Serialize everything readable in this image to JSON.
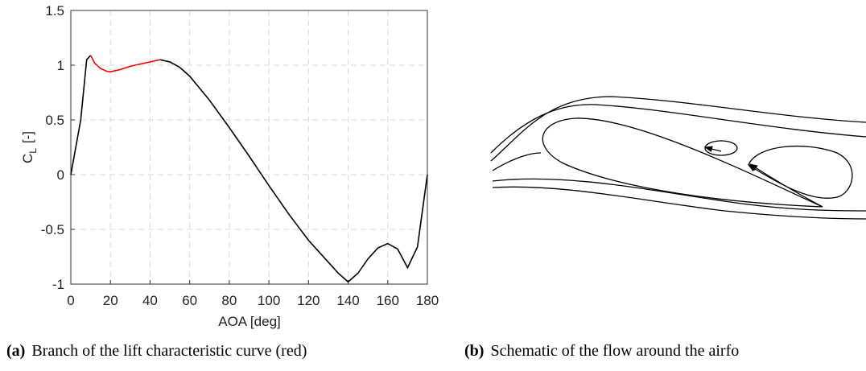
{
  "chart_data": {
    "type": "line",
    "xlabel": "AOA [deg]",
    "ylabel_main": "C",
    "ylabel_sub": "L",
    "ylabel_unit": "[-]",
    "xlim": [
      0,
      180
    ],
    "xticks": [
      0,
      20,
      40,
      60,
      80,
      100,
      120,
      140,
      160,
      180
    ],
    "ylim": [
      -1,
      1.5
    ],
    "yticks": [
      -1,
      -0.5,
      0,
      0.5,
      1,
      1.5
    ],
    "grid": true,
    "series": [
      {
        "color": "#000000",
        "x": [
          0,
          5,
          8,
          10
        ],
        "values": [
          0,
          0.5,
          1.05,
          1.09
        ]
      },
      {
        "color": "#ff0000",
        "x": [
          10,
          12,
          15,
          18,
          20,
          25,
          30,
          35,
          40,
          45
        ],
        "values": [
          1.09,
          1.02,
          0.97,
          0.945,
          0.94,
          0.96,
          0.99,
          1.01,
          1.03,
          1.05
        ]
      },
      {
        "color": "#000000",
        "x": [
          45,
          50,
          55,
          60,
          70,
          80,
          90,
          100,
          110,
          120,
          125,
          130,
          135,
          140,
          145,
          150,
          155,
          160,
          165,
          170,
          175,
          180
        ],
        "values": [
          1.05,
          1.03,
          0.98,
          0.9,
          0.68,
          0.43,
          0.17,
          -0.1,
          -0.36,
          -0.6,
          -0.7,
          -0.8,
          -0.9,
          -0.98,
          -0.9,
          -0.77,
          -0.67,
          -0.63,
          -0.68,
          -0.85,
          -0.66,
          0
        ]
      }
    ]
  },
  "captions": [
    {
      "label": "(a)",
      "text": "Branch of the lift characteristic curve (red)"
    },
    {
      "label": "(b)",
      "text": "Schematic of the flow around the airfo"
    }
  ]
}
